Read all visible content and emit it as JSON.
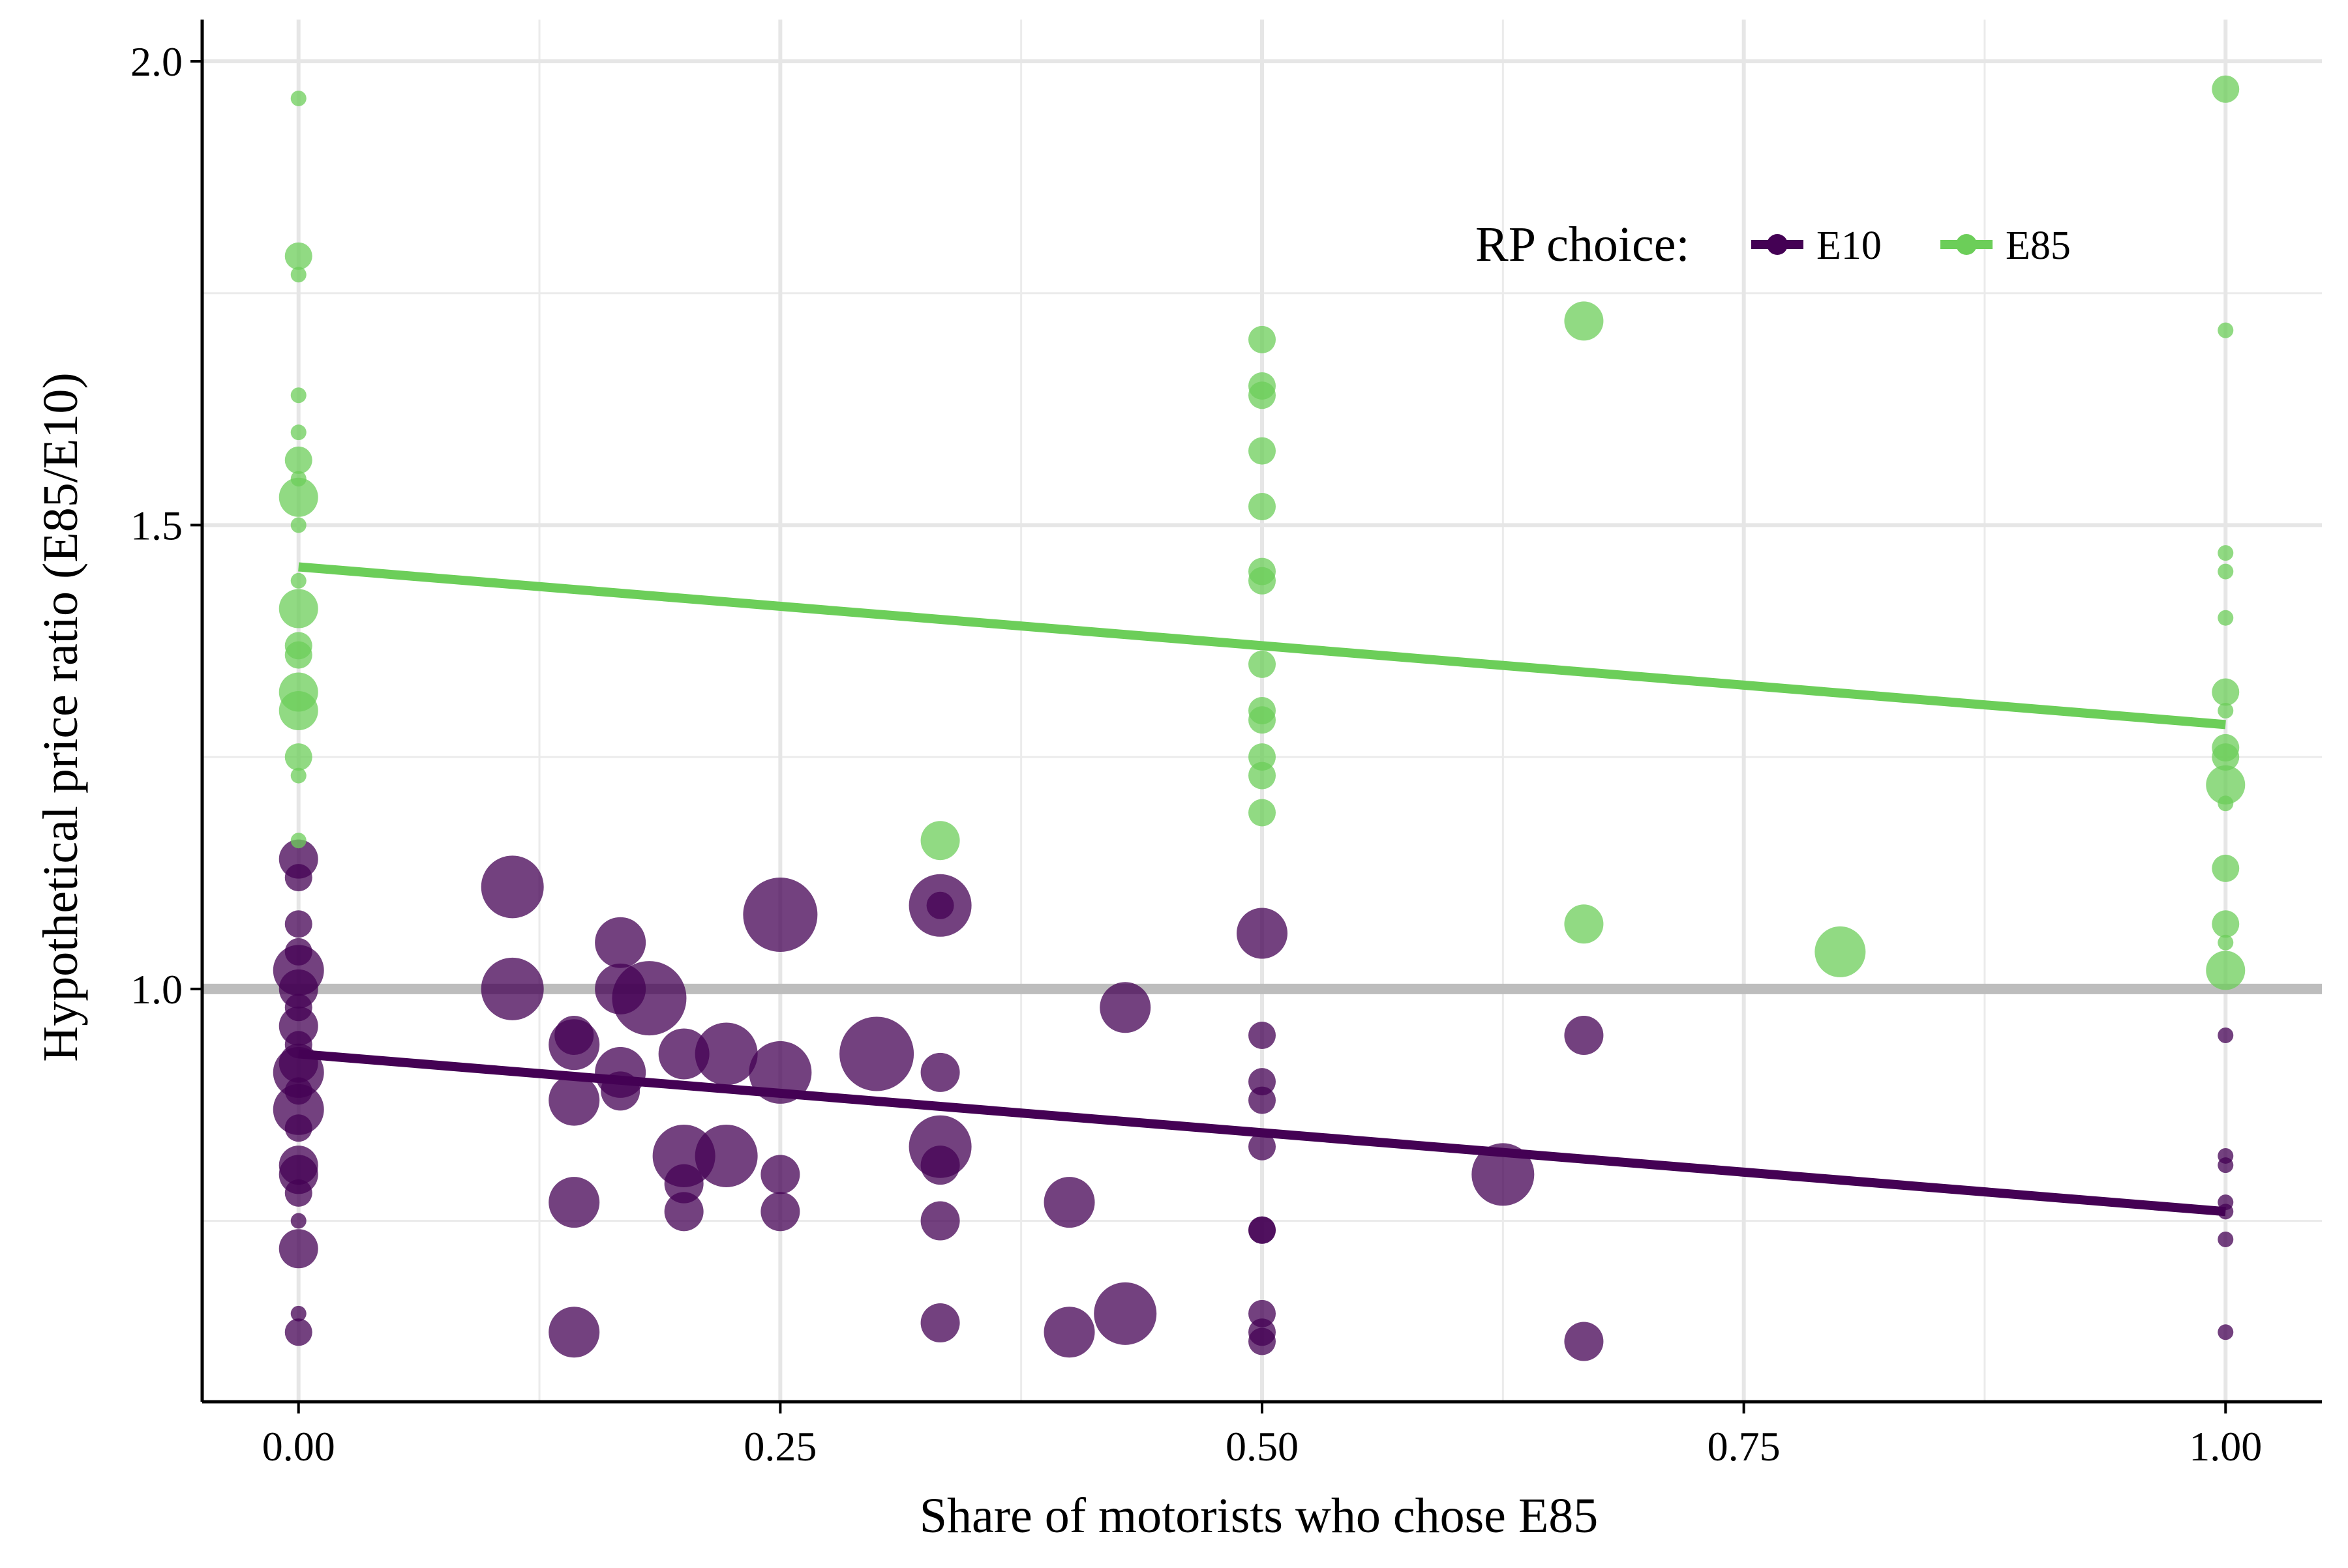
{
  "chart_data": {
    "type": "scatter",
    "xlabel": "Share of motorists who chose E85",
    "ylabel": "Hypothetical price ratio (E85/E10)",
    "xlim": [
      -0.05,
      1.05
    ],
    "ylim": [
      0.555,
      2.045
    ],
    "x_ticks": [
      {
        "value": 0.0,
        "label": "0.00"
      },
      {
        "value": 0.25,
        "label": "0.25"
      },
      {
        "value": 0.5,
        "label": "0.50"
      },
      {
        "value": 0.75,
        "label": "0.75"
      },
      {
        "value": 1.0,
        "label": "1.00"
      }
    ],
    "y_ticks": [
      {
        "value": 1.0,
        "label": "1.0"
      },
      {
        "value": 1.5,
        "label": "1.5"
      },
      {
        "value": 2.0,
        "label": "2.0"
      }
    ],
    "x_minor_grid": [
      0.125,
      0.375,
      0.625,
      0.875
    ],
    "y_minor_grid": [
      0.75,
      1.25,
      1.75
    ],
    "grid": true,
    "reference_line": {
      "y": 1.0,
      "color": "#bdbdbd"
    },
    "legend": {
      "title": "RP choice:",
      "position": "top-right",
      "items": [
        {
          "label": "E10",
          "color": "#440154"
        },
        {
          "label": "E85",
          "color": "#6cce59"
        }
      ]
    },
    "series": [
      {
        "name": "E10",
        "color": "#440154",
        "fit_line": {
          "x": [
            0.0,
            1.0
          ],
          "y": [
            0.93,
            0.76
          ]
        },
        "points": [
          {
            "x": 0.0,
            "y": 1.14,
            "size": 3
          },
          {
            "x": 0.0,
            "y": 1.12,
            "size": 2
          },
          {
            "x": 0.0,
            "y": 1.07,
            "size": 2
          },
          {
            "x": 0.0,
            "y": 1.04,
            "size": 2
          },
          {
            "x": 0.0,
            "y": 1.02,
            "size": 4
          },
          {
            "x": 0.0,
            "y": 1.0,
            "size": 3
          },
          {
            "x": 0.0,
            "y": 0.98,
            "size": 2
          },
          {
            "x": 0.0,
            "y": 0.96,
            "size": 3
          },
          {
            "x": 0.0,
            "y": 0.94,
            "size": 2
          },
          {
            "x": 0.0,
            "y": 0.92,
            "size": 3
          },
          {
            "x": 0.0,
            "y": 0.91,
            "size": 4
          },
          {
            "x": 0.0,
            "y": 0.89,
            "size": 2
          },
          {
            "x": 0.0,
            "y": 0.87,
            "size": 4
          },
          {
            "x": 0.0,
            "y": 0.85,
            "size": 2
          },
          {
            "x": 0.0,
            "y": 0.81,
            "size": 3
          },
          {
            "x": 0.0,
            "y": 0.8,
            "size": 3
          },
          {
            "x": 0.0,
            "y": 0.78,
            "size": 2
          },
          {
            "x": 0.0,
            "y": 0.75,
            "size": 1
          },
          {
            "x": 0.0,
            "y": 0.72,
            "size": 3
          },
          {
            "x": 0.0,
            "y": 0.65,
            "size": 1
          },
          {
            "x": 0.0,
            "y": 0.63,
            "size": 2
          },
          {
            "x": 0.111,
            "y": 1.11,
            "size": 5
          },
          {
            "x": 0.111,
            "y": 1.0,
            "size": 5
          },
          {
            "x": 0.143,
            "y": 0.95,
            "size": 3
          },
          {
            "x": 0.143,
            "y": 0.94,
            "size": 4
          },
          {
            "x": 0.143,
            "y": 0.88,
            "size": 4
          },
          {
            "x": 0.143,
            "y": 0.77,
            "size": 4
          },
          {
            "x": 0.143,
            "y": 0.63,
            "size": 4
          },
          {
            "x": 0.167,
            "y": 1.05,
            "size": 4
          },
          {
            "x": 0.167,
            "y": 1.0,
            "size": 4
          },
          {
            "x": 0.167,
            "y": 0.91,
            "size": 4
          },
          {
            "x": 0.167,
            "y": 0.89,
            "size": 3
          },
          {
            "x": 0.182,
            "y": 0.99,
            "size": 6
          },
          {
            "x": 0.2,
            "y": 0.93,
            "size": 4
          },
          {
            "x": 0.2,
            "y": 0.82,
            "size": 5
          },
          {
            "x": 0.2,
            "y": 0.79,
            "size": 3
          },
          {
            "x": 0.2,
            "y": 0.76,
            "size": 3
          },
          {
            "x": 0.222,
            "y": 0.93,
            "size": 5
          },
          {
            "x": 0.222,
            "y": 0.82,
            "size": 5
          },
          {
            "x": 0.25,
            "y": 1.08,
            "size": 6
          },
          {
            "x": 0.25,
            "y": 0.91,
            "size": 5
          },
          {
            "x": 0.25,
            "y": 0.8,
            "size": 3
          },
          {
            "x": 0.25,
            "y": 0.76,
            "size": 3
          },
          {
            "x": 0.3,
            "y": 0.93,
            "size": 6
          },
          {
            "x": 0.333,
            "y": 1.09,
            "size": 5
          },
          {
            "x": 0.333,
            "y": 1.09,
            "size": 2
          },
          {
            "x": 0.333,
            "y": 0.91,
            "size": 3
          },
          {
            "x": 0.333,
            "y": 0.83,
            "size": 5
          },
          {
            "x": 0.333,
            "y": 0.81,
            "size": 3
          },
          {
            "x": 0.333,
            "y": 0.75,
            "size": 3
          },
          {
            "x": 0.333,
            "y": 0.64,
            "size": 3
          },
          {
            "x": 0.4,
            "y": 0.77,
            "size": 4
          },
          {
            "x": 0.4,
            "y": 0.63,
            "size": 4
          },
          {
            "x": 0.429,
            "y": 0.98,
            "size": 4
          },
          {
            "x": 0.429,
            "y": 0.65,
            "size": 5
          },
          {
            "x": 0.5,
            "y": 1.06,
            "size": 4
          },
          {
            "x": 0.5,
            "y": 0.95,
            "size": 2
          },
          {
            "x": 0.5,
            "y": 0.9,
            "size": 2
          },
          {
            "x": 0.5,
            "y": 0.88,
            "size": 2
          },
          {
            "x": 0.5,
            "y": 0.83,
            "size": 2
          },
          {
            "x": 0.5,
            "y": 0.74,
            "size": 2
          },
          {
            "x": 0.5,
            "y": 0.74,
            "size": 2
          },
          {
            "x": 0.5,
            "y": 0.65,
            "size": 2
          },
          {
            "x": 0.5,
            "y": 0.63,
            "size": 2
          },
          {
            "x": 0.5,
            "y": 0.62,
            "size": 2
          },
          {
            "x": 0.625,
            "y": 0.8,
            "size": 5
          },
          {
            "x": 0.667,
            "y": 0.95,
            "size": 3
          },
          {
            "x": 0.667,
            "y": 0.62,
            "size": 3
          },
          {
            "x": 1.0,
            "y": 0.95,
            "size": 1
          },
          {
            "x": 1.0,
            "y": 0.82,
            "size": 1
          },
          {
            "x": 1.0,
            "y": 0.81,
            "size": 1
          },
          {
            "x": 1.0,
            "y": 0.77,
            "size": 1
          },
          {
            "x": 1.0,
            "y": 0.76,
            "size": 1
          },
          {
            "x": 1.0,
            "y": 0.73,
            "size": 1
          },
          {
            "x": 1.0,
            "y": 0.63,
            "size": 1
          }
        ]
      },
      {
        "name": "E85",
        "color": "#6cce59",
        "fit_line": {
          "x": [
            0.0,
            1.0
          ],
          "y": [
            1.455,
            1.285
          ]
        },
        "points": [
          {
            "x": 0.0,
            "y": 1.96,
            "size": 1
          },
          {
            "x": 0.0,
            "y": 1.79,
            "size": 2
          },
          {
            "x": 0.0,
            "y": 1.77,
            "size": 1
          },
          {
            "x": 0.0,
            "y": 1.64,
            "size": 1
          },
          {
            "x": 0.0,
            "y": 1.6,
            "size": 1
          },
          {
            "x": 0.0,
            "y": 1.57,
            "size": 2
          },
          {
            "x": 0.0,
            "y": 1.55,
            "size": 1
          },
          {
            "x": 0.0,
            "y": 1.53,
            "size": 3
          },
          {
            "x": 0.0,
            "y": 1.5,
            "size": 1
          },
          {
            "x": 0.0,
            "y": 1.44,
            "size": 1
          },
          {
            "x": 0.0,
            "y": 1.41,
            "size": 3
          },
          {
            "x": 0.0,
            "y": 1.37,
            "size": 2
          },
          {
            "x": 0.0,
            "y": 1.36,
            "size": 2
          },
          {
            "x": 0.0,
            "y": 1.32,
            "size": 3
          },
          {
            "x": 0.0,
            "y": 1.3,
            "size": 3
          },
          {
            "x": 0.0,
            "y": 1.25,
            "size": 2
          },
          {
            "x": 0.0,
            "y": 1.23,
            "size": 1
          },
          {
            "x": 0.0,
            "y": 1.16,
            "size": 1
          },
          {
            "x": 0.333,
            "y": 1.16,
            "size": 3
          },
          {
            "x": 0.5,
            "y": 1.7,
            "size": 2
          },
          {
            "x": 0.5,
            "y": 1.65,
            "size": 2
          },
          {
            "x": 0.5,
            "y": 1.64,
            "size": 2
          },
          {
            "x": 0.5,
            "y": 1.58,
            "size": 2
          },
          {
            "x": 0.5,
            "y": 1.52,
            "size": 2
          },
          {
            "x": 0.5,
            "y": 1.45,
            "size": 2
          },
          {
            "x": 0.5,
            "y": 1.44,
            "size": 2
          },
          {
            "x": 0.5,
            "y": 1.35,
            "size": 2
          },
          {
            "x": 0.5,
            "y": 1.3,
            "size": 2
          },
          {
            "x": 0.5,
            "y": 1.29,
            "size": 2
          },
          {
            "x": 0.5,
            "y": 1.25,
            "size": 2
          },
          {
            "x": 0.5,
            "y": 1.23,
            "size": 2
          },
          {
            "x": 0.5,
            "y": 1.19,
            "size": 2
          },
          {
            "x": 0.667,
            "y": 1.72,
            "size": 3
          },
          {
            "x": 0.667,
            "y": 1.07,
            "size": 3
          },
          {
            "x": 0.8,
            "y": 1.04,
            "size": 4
          },
          {
            "x": 1.0,
            "y": 1.97,
            "size": 2
          },
          {
            "x": 1.0,
            "y": 1.71,
            "size": 1
          },
          {
            "x": 1.0,
            "y": 1.47,
            "size": 1
          },
          {
            "x": 1.0,
            "y": 1.45,
            "size": 1
          },
          {
            "x": 1.0,
            "y": 1.4,
            "size": 1
          },
          {
            "x": 1.0,
            "y": 1.32,
            "size": 2
          },
          {
            "x": 1.0,
            "y": 1.3,
            "size": 1
          },
          {
            "x": 1.0,
            "y": 1.26,
            "size": 2
          },
          {
            "x": 1.0,
            "y": 1.25,
            "size": 2
          },
          {
            "x": 1.0,
            "y": 1.22,
            "size": 3
          },
          {
            "x": 1.0,
            "y": 1.2,
            "size": 1
          },
          {
            "x": 1.0,
            "y": 1.13,
            "size": 2
          },
          {
            "x": 1.0,
            "y": 1.07,
            "size": 2
          },
          {
            "x": 1.0,
            "y": 1.05,
            "size": 1
          },
          {
            "x": 1.0,
            "y": 1.02,
            "size": 3
          }
        ]
      }
    ]
  }
}
